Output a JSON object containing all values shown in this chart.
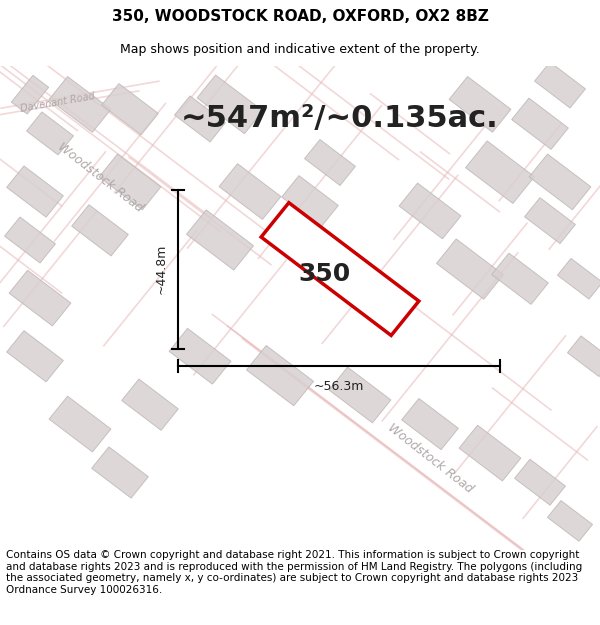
{
  "title_line1": "350, WOODSTOCK ROAD, OXFORD, OX2 8BZ",
  "title_line2": "Map shows position and indicative extent of the property.",
  "area_text": "~547m²/~0.135ac.",
  "property_number": "350",
  "dim_width": "~56.3m",
  "dim_height": "~44.8m",
  "footer_text": "Contains OS data © Crown copyright and database right 2021. This information is subject to Crown copyright and database rights 2023 and is reproduced with the permission of HM Land Registry. The polygons (including the associated geometry, namely x, y co-ordinates) are subject to Crown copyright and database rights 2023 Ordnance Survey 100026316.",
  "map_bg": "#f5f2f2",
  "road_color": "#e8b8b8",
  "building_color": "#d8d0d0",
  "building_edge": "#c0b8b8",
  "property_color": "#cc0000",
  "road_label_color": "#b0a8a8",
  "title_fontsize": 11,
  "subtitle_fontsize": 9,
  "area_fontsize": 22,
  "footer_fontsize": 7.5
}
